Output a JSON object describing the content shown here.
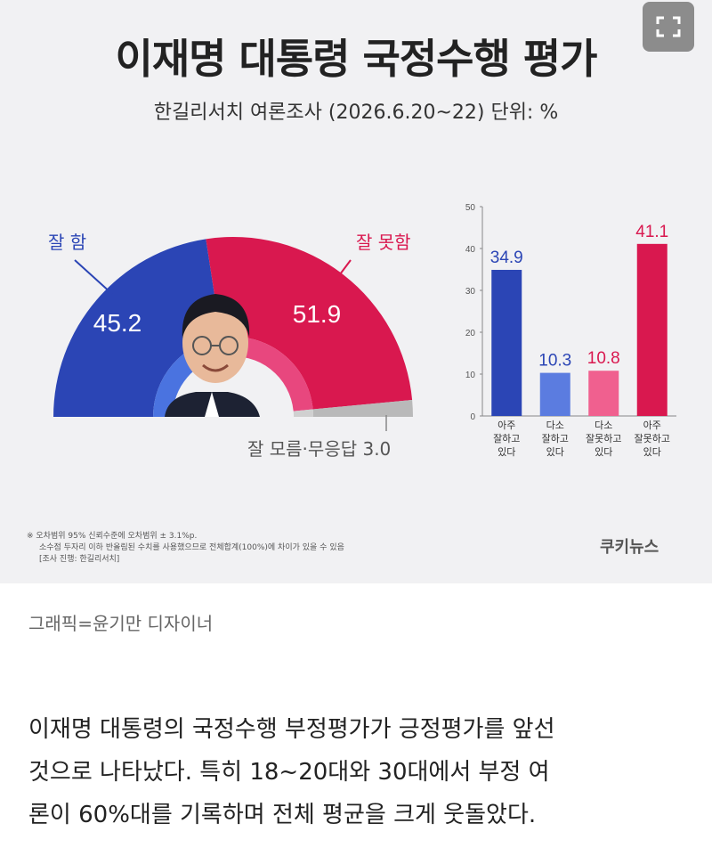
{
  "graphic": {
    "title": "이재명 대통령 국정수행 평가",
    "subtitle": "한길리서치 여론조사 (2026.6.20~22) 단위: %",
    "brand": "쿠키뉴스",
    "footnotes": [
      "※ 오차범위 95% 신뢰수준에 오차범위 ± 3.1%p.",
      "소수점 두자리 이하 반올림된 수치를 사용했으므로 전체합계(100%)에 차이가 있을 수 있음",
      "[조사 진행: 한길리서치]"
    ]
  },
  "toolbar": {
    "expand_icon": "expand-icon"
  },
  "chart_data": [
    {
      "type": "pie",
      "categories": [
        "잘 함",
        "잘 못함",
        "잘 모름·무응답"
      ],
      "values": [
        45.2,
        51.9,
        3.0
      ],
      "value_labels": [
        "45.2",
        "51.9",
        "3.0"
      ],
      "label_texts": [
        "잘 함",
        "잘 못함",
        "잘 모름·무응답 3.0"
      ],
      "colors": [
        "#2b45b5",
        "#d9184f",
        "#b9b9b9"
      ],
      "inner_colors": [
        "#4a73e0",
        "#e8477e",
        "#d0d0d0"
      ]
    },
    {
      "type": "bar",
      "categories": [
        [
          "아주",
          "잘하고",
          "있다"
        ],
        [
          "다소",
          "잘하고",
          "있다"
        ],
        [
          "다소",
          "잘못하고",
          "있다"
        ],
        [
          "아주",
          "잘못하고",
          "있다"
        ]
      ],
      "values": [
        34.9,
        10.3,
        10.8,
        41.1
      ],
      "value_labels": [
        "34.9",
        "10.3",
        "10.8",
        "41.1"
      ],
      "colors": [
        "#2b45b5",
        "#5b7ce0",
        "#f0608f",
        "#d9184f"
      ],
      "label_colors": [
        "#2b45b5",
        "#2b45b5",
        "#d9184f",
        "#d9184f"
      ],
      "yticks": [
        "0",
        "10",
        "20",
        "30",
        "40",
        "50"
      ],
      "ylim": [
        0,
        50
      ]
    }
  ],
  "caption": "그래픽=윤기만 디자이너",
  "article": [
    "이재명 대통령의 국정수행 부정평가가 긍정평가를 앞선",
    "것으로 나타났다. 특히 18~20대와 30대에서 부정 여",
    "론이 60%대를 기록하며 전체 평균을 크게 웃돌았다."
  ]
}
